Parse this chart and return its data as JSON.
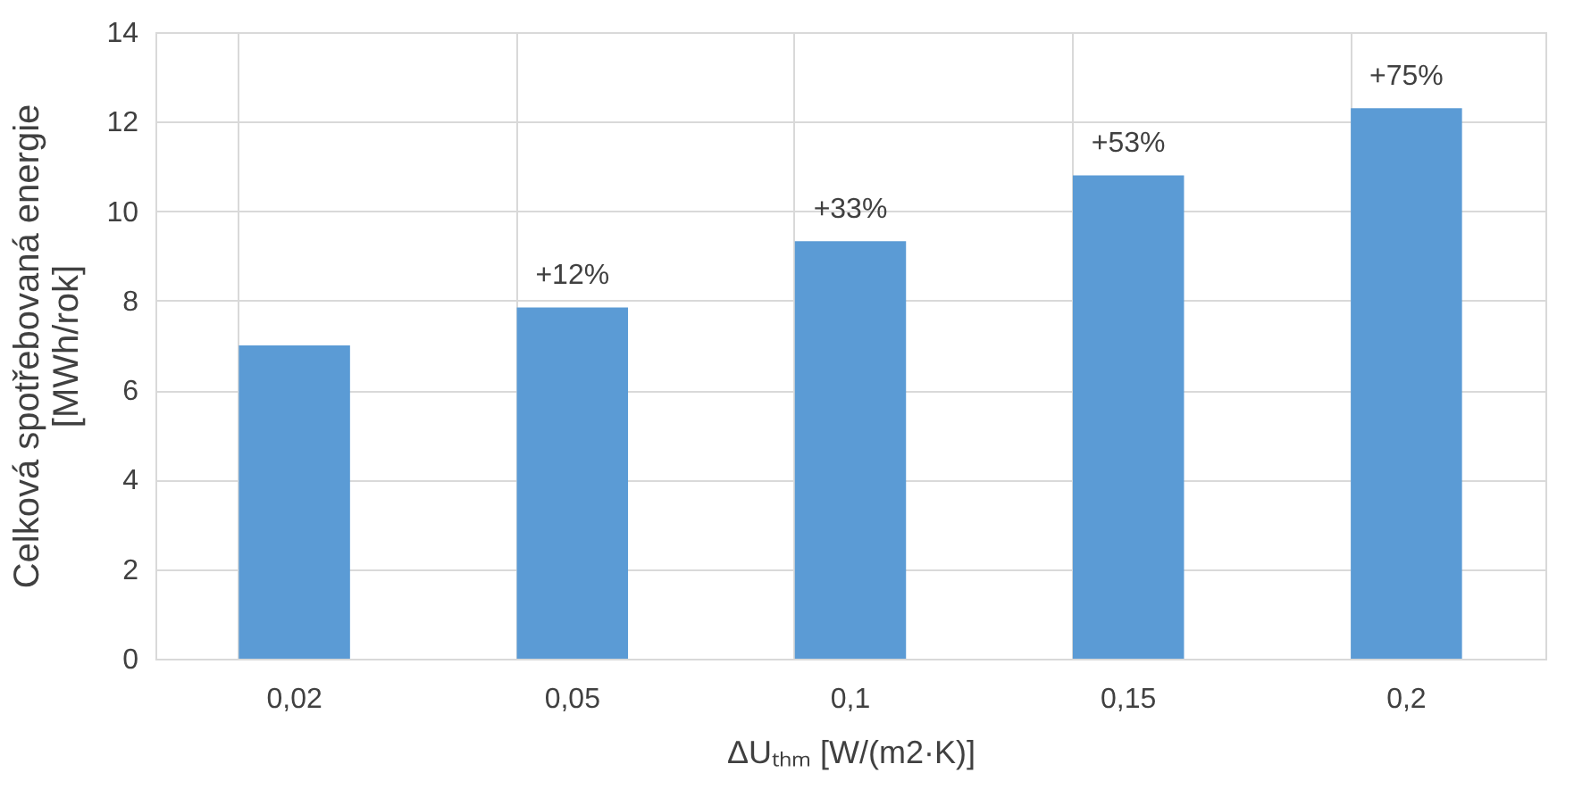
{
  "chart_data": {
    "type": "bar",
    "categories": [
      "0,02",
      "0,05",
      "0,1",
      "0,15",
      "0,2"
    ],
    "values": [
      7.0,
      7.85,
      9.33,
      10.8,
      12.3
    ],
    "annotations": [
      {
        "text": "+12%",
        "x": "0,05",
        "y": 7.85
      },
      {
        "text": "+33%",
        "x": "0,1",
        "y": 9.33
      },
      {
        "text": "+53%",
        "x": "0,15",
        "y": 10.8
      },
      {
        "text": "+75%",
        "x": "0,2",
        "y": 12.3
      }
    ],
    "color": "#5b9bd5",
    "xlabel": "ΔUₜₕₘ [W/(m2·K)]",
    "ylabel": "Celková spotřebovaná energie\n[MWh/rok]",
    "ylim": [
      0,
      14
    ],
    "yticks": [
      0,
      2,
      4,
      6,
      8,
      10,
      12,
      14
    ],
    "grid": true
  }
}
